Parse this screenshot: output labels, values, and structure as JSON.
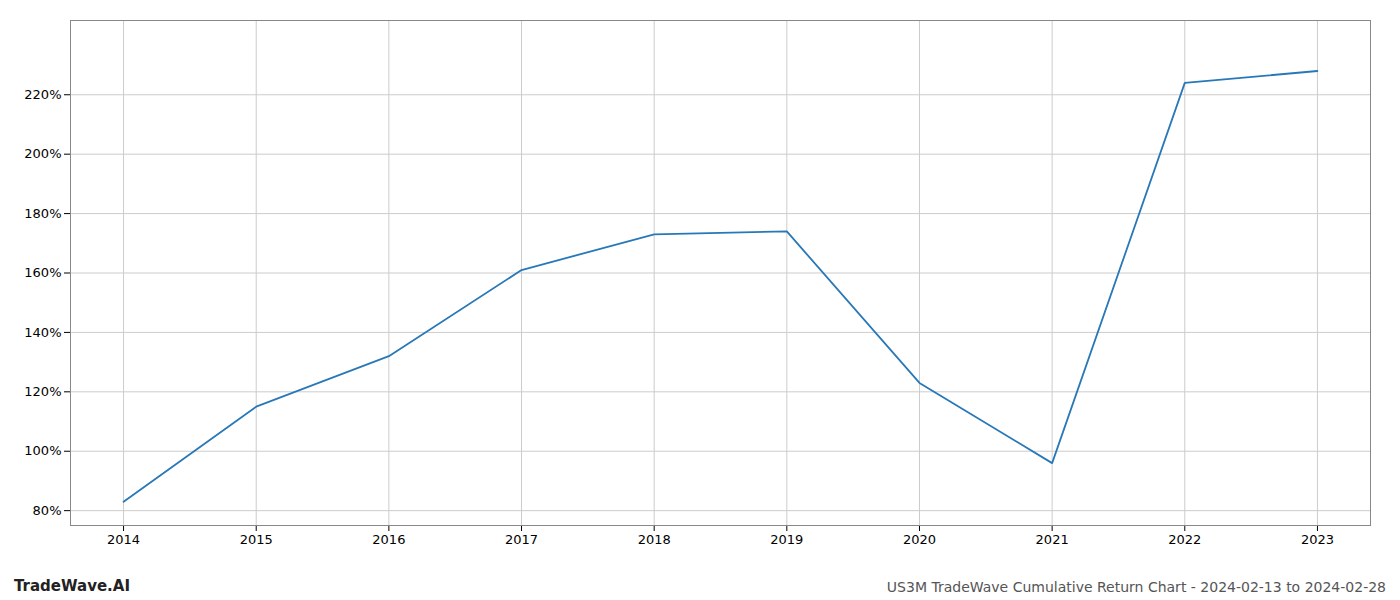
{
  "chart_data": {
    "type": "line",
    "title": "US3M TradeWave Cumulative Return Chart - 2024-02-13 to 2024-02-28",
    "annotations": [
      "TradeWave.AI"
    ],
    "x": [
      2014,
      2015,
      2016,
      2017,
      2018,
      2019,
      2020,
      2021,
      2022,
      2023
    ],
    "values": [
      83,
      115,
      132,
      161,
      173,
      174,
      123,
      96,
      224,
      228
    ],
    "color": "#2878b8",
    "xlim": [
      2013.6,
      2023.4
    ],
    "xticks": [
      2014,
      2015,
      2016,
      2017,
      2018,
      2019,
      2020,
      2021,
      2022,
      2023
    ],
    "ylim": [
      75,
      245
    ],
    "yticks": [
      {
        "value": 80,
        "label": "80%"
      },
      {
        "value": 100,
        "label": "100%"
      },
      {
        "value": 120,
        "label": "120%"
      },
      {
        "value": 140,
        "label": "140%"
      },
      {
        "value": 160,
        "label": "160%"
      },
      {
        "value": 180,
        "label": "180%"
      },
      {
        "value": 200,
        "label": "200%"
      },
      {
        "value": 220,
        "label": "220%"
      }
    ],
    "grid": true
  }
}
